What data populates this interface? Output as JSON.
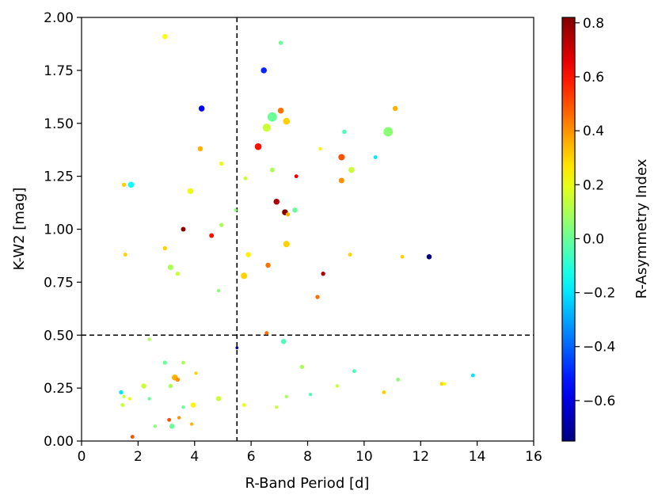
{
  "chart_data": {
    "type": "scatter",
    "title": "",
    "xlabel": "R-Band Period [d]",
    "ylabel": "K-W2 [mag]",
    "xlim": [
      0,
      16
    ],
    "ylim": [
      0,
      2.0
    ],
    "x_ticks": [
      0,
      2,
      4,
      6,
      8,
      10,
      12,
      14,
      16
    ],
    "x_tick_labels": [
      "0",
      "2",
      "4",
      "6",
      "8",
      "10",
      "12",
      "14",
      "16"
    ],
    "y_ticks": [
      0,
      0.25,
      0.5,
      0.75,
      1.0,
      1.25,
      1.5,
      1.75,
      2.0
    ],
    "y_tick_labels": [
      "0.00",
      "0.25",
      "0.50",
      "0.75",
      "1.00",
      "1.25",
      "1.50",
      "1.75",
      "2.00"
    ],
    "grid": false,
    "reference_lines": [
      {
        "orientation": "vertical",
        "x": 5.5,
        "style": "dashed"
      },
      {
        "orientation": "horizontal",
        "y": 0.5,
        "style": "dashed"
      }
    ],
    "colorbar": {
      "label": "R-Asymmetry Index",
      "colormap": "jet",
      "min": -0.75,
      "max": 0.82,
      "ticks": [
        -0.6,
        -0.4,
        -0.2,
        0.0,
        0.2,
        0.4,
        0.6,
        0.8
      ],
      "tick_labels": [
        "−0.6",
        "−0.4",
        "−0.2",
        "0.0",
        "0.2",
        "0.4",
        "0.6",
        "0.8"
      ]
    },
    "points": [
      {
        "x": 2.95,
        "y": 1.91,
        "c": 0.22,
        "s": 1.2
      },
      {
        "x": 7.05,
        "y": 1.88,
        "c": 0.0,
        "s": 1.0
      },
      {
        "x": 6.45,
        "y": 1.75,
        "c": -0.5,
        "s": 1.4
      },
      {
        "x": 4.25,
        "y": 1.57,
        "c": -0.55,
        "s": 1.4
      },
      {
        "x": 7.05,
        "y": 1.56,
        "c": 0.45,
        "s": 1.4
      },
      {
        "x": 11.1,
        "y": 1.57,
        "c": 0.35,
        "s": 1.2
      },
      {
        "x": 6.75,
        "y": 1.53,
        "c": 0.0,
        "s": 2.2
      },
      {
        "x": 6.55,
        "y": 1.48,
        "c": 0.15,
        "s": 1.9
      },
      {
        "x": 7.25,
        "y": 1.51,
        "c": 0.3,
        "s": 1.6
      },
      {
        "x": 9.3,
        "y": 1.46,
        "c": -0.05,
        "s": 1.0
      },
      {
        "x": 10.85,
        "y": 1.46,
        "c": 0.05,
        "s": 2.2
      },
      {
        "x": 6.25,
        "y": 1.39,
        "c": 0.6,
        "s": 1.6
      },
      {
        "x": 4.2,
        "y": 1.38,
        "c": 0.35,
        "s": 1.2
      },
      {
        "x": 8.45,
        "y": 1.38,
        "c": 0.25,
        "s": 0.8
      },
      {
        "x": 9.2,
        "y": 1.34,
        "c": 0.5,
        "s": 1.5
      },
      {
        "x": 10.4,
        "y": 1.34,
        "c": -0.2,
        "s": 0.9
      },
      {
        "x": 4.95,
        "y": 1.31,
        "c": 0.2,
        "s": 1.0
      },
      {
        "x": 6.75,
        "y": 1.28,
        "c": 0.1,
        "s": 1.1
      },
      {
        "x": 9.55,
        "y": 1.28,
        "c": 0.15,
        "s": 1.4
      },
      {
        "x": 5.8,
        "y": 1.24,
        "c": 0.15,
        "s": 0.9
      },
      {
        "x": 7.6,
        "y": 1.25,
        "c": 0.65,
        "s": 0.9
      },
      {
        "x": 9.2,
        "y": 1.23,
        "c": 0.4,
        "s": 1.3
      },
      {
        "x": 1.5,
        "y": 1.21,
        "c": 0.3,
        "s": 1.0
      },
      {
        "x": 1.75,
        "y": 1.21,
        "c": -0.15,
        "s": 1.4
      },
      {
        "x": 3.85,
        "y": 1.18,
        "c": 0.2,
        "s": 1.4
      },
      {
        "x": 6.9,
        "y": 1.13,
        "c": 0.75,
        "s": 1.4
      },
      {
        "x": 7.2,
        "y": 1.08,
        "c": 0.82,
        "s": 1.4
      },
      {
        "x": 7.3,
        "y": 1.07,
        "c": 0.35,
        "s": 1.0
      },
      {
        "x": 7.55,
        "y": 1.09,
        "c": 0.0,
        "s": 1.2
      },
      {
        "x": 5.45,
        "y": 1.09,
        "c": 0.05,
        "s": 0.8
      },
      {
        "x": 3.6,
        "y": 1.0,
        "c": 0.8,
        "s": 1.1
      },
      {
        "x": 4.95,
        "y": 1.02,
        "c": 0.1,
        "s": 1.0
      },
      {
        "x": 4.6,
        "y": 0.97,
        "c": 0.6,
        "s": 1.1
      },
      {
        "x": 7.25,
        "y": 0.93,
        "c": 0.3,
        "s": 1.5
      },
      {
        "x": 2.95,
        "y": 0.91,
        "c": 0.3,
        "s": 1.0
      },
      {
        "x": 9.5,
        "y": 0.88,
        "c": 0.3,
        "s": 0.9
      },
      {
        "x": 1.55,
        "y": 0.88,
        "c": 0.3,
        "s": 0.9
      },
      {
        "x": 5.9,
        "y": 0.88,
        "c": 0.25,
        "s": 1.2
      },
      {
        "x": 11.35,
        "y": 0.87,
        "c": 0.3,
        "s": 0.9
      },
      {
        "x": 12.3,
        "y": 0.87,
        "c": -0.75,
        "s": 1.2
      },
      {
        "x": 6.6,
        "y": 0.83,
        "c": 0.45,
        "s": 1.2
      },
      {
        "x": 3.15,
        "y": 0.82,
        "c": 0.1,
        "s": 1.3
      },
      {
        "x": 3.4,
        "y": 0.79,
        "c": 0.15,
        "s": 1.0
      },
      {
        "x": 8.55,
        "y": 0.79,
        "c": 0.75,
        "s": 1.0
      },
      {
        "x": 5.75,
        "y": 0.78,
        "c": 0.3,
        "s": 1.5
      },
      {
        "x": 4.85,
        "y": 0.71,
        "c": 0.05,
        "s": 0.8
      },
      {
        "x": 8.35,
        "y": 0.68,
        "c": 0.45,
        "s": 1.0
      },
      {
        "x": 6.55,
        "y": 0.51,
        "c": 0.45,
        "s": 0.9
      },
      {
        "x": 5.5,
        "y": 0.44,
        "c": -0.7,
        "s": 0.7
      },
      {
        "x": 2.4,
        "y": 0.48,
        "c": 0.1,
        "s": 0.8
      },
      {
        "x": 7.15,
        "y": 0.47,
        "c": -0.05,
        "s": 1.2
      },
      {
        "x": 2.95,
        "y": 0.37,
        "c": 0.0,
        "s": 1.0
      },
      {
        "x": 3.6,
        "y": 0.37,
        "c": 0.1,
        "s": 0.9
      },
      {
        "x": 7.8,
        "y": 0.35,
        "c": 0.1,
        "s": 1.0
      },
      {
        "x": 9.65,
        "y": 0.33,
        "c": -0.05,
        "s": 0.9
      },
      {
        "x": 4.05,
        "y": 0.32,
        "c": 0.3,
        "s": 0.8
      },
      {
        "x": 13.85,
        "y": 0.31,
        "c": -0.2,
        "s": 0.9
      },
      {
        "x": 3.3,
        "y": 0.3,
        "c": 0.35,
        "s": 1.4
      },
      {
        "x": 3.4,
        "y": 0.29,
        "c": 0.4,
        "s": 1.0
      },
      {
        "x": 11.2,
        "y": 0.29,
        "c": 0.05,
        "s": 0.9
      },
      {
        "x": 12.75,
        "y": 0.27,
        "c": 0.3,
        "s": 0.9
      },
      {
        "x": 12.85,
        "y": 0.27,
        "c": 0.2,
        "s": 0.8
      },
      {
        "x": 2.2,
        "y": 0.26,
        "c": 0.15,
        "s": 1.2
      },
      {
        "x": 3.15,
        "y": 0.26,
        "c": 0.1,
        "s": 1.0
      },
      {
        "x": 9.05,
        "y": 0.26,
        "c": 0.15,
        "s": 0.8
      },
      {
        "x": 1.4,
        "y": 0.23,
        "c": -0.2,
        "s": 1.0
      },
      {
        "x": 10.7,
        "y": 0.23,
        "c": 0.3,
        "s": 0.9
      },
      {
        "x": 8.1,
        "y": 0.22,
        "c": -0.05,
        "s": 0.8
      },
      {
        "x": 1.5,
        "y": 0.21,
        "c": 0.15,
        "s": 0.8
      },
      {
        "x": 1.7,
        "y": 0.2,
        "c": 0.2,
        "s": 0.8
      },
      {
        "x": 2.4,
        "y": 0.2,
        "c": 0.0,
        "s": 0.8
      },
      {
        "x": 4.85,
        "y": 0.2,
        "c": 0.15,
        "s": 1.2
      },
      {
        "x": 7.25,
        "y": 0.21,
        "c": 0.1,
        "s": 0.8
      },
      {
        "x": 1.45,
        "y": 0.17,
        "c": 0.15,
        "s": 0.9
      },
      {
        "x": 3.6,
        "y": 0.16,
        "c": 0.0,
        "s": 0.8
      },
      {
        "x": 3.95,
        "y": 0.17,
        "c": 0.25,
        "s": 1.2
      },
      {
        "x": 5.75,
        "y": 0.17,
        "c": 0.2,
        "s": 0.9
      },
      {
        "x": 6.9,
        "y": 0.16,
        "c": 0.15,
        "s": 0.8
      },
      {
        "x": 3.1,
        "y": 0.1,
        "c": 0.5,
        "s": 0.9
      },
      {
        "x": 3.45,
        "y": 0.11,
        "c": 0.4,
        "s": 0.8
      },
      {
        "x": 2.6,
        "y": 0.07,
        "c": 0.05,
        "s": 0.8
      },
      {
        "x": 3.2,
        "y": 0.07,
        "c": 0.0,
        "s": 1.2
      },
      {
        "x": 3.9,
        "y": 0.08,
        "c": 0.35,
        "s": 0.8
      },
      {
        "x": 1.8,
        "y": 0.02,
        "c": 0.5,
        "s": 0.9
      }
    ]
  }
}
